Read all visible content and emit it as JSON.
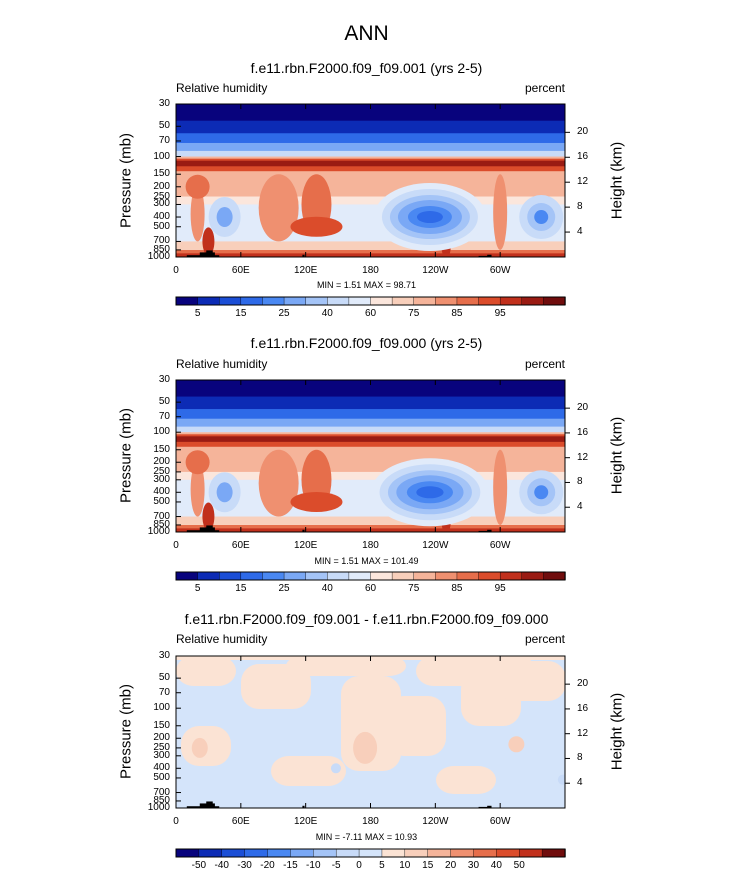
{
  "figure": {
    "title": "ANN"
  },
  "chart_data": [
    {
      "type": "heatmap",
      "title": "f.e11.rbn.F2000.f09_f09.001 (yrs 2-5)",
      "variable": "Relative humidity",
      "units": "percent",
      "ylabel": "Pressure (mb)",
      "ylabel_right": "Height (km)",
      "x_ticks": [
        "0",
        "60E",
        "120E",
        "180",
        "120W",
        "60W"
      ],
      "y_ticks": [
        "30",
        "50",
        "70",
        "100",
        "150",
        "200",
        "250",
        "300",
        "400",
        "500",
        "700",
        "850",
        "1000"
      ],
      "y_ticks_right": [
        "20",
        "16",
        "12",
        "8",
        "4"
      ],
      "stats": {
        "min": 1.51,
        "max": 98.71,
        "label": "MIN =   1.51  MAX = 98.71"
      },
      "colorbar_labels": [
        "5",
        "15",
        "25",
        "40",
        "60",
        "75",
        "85",
        "95"
      ],
      "features": {
        "dry_cores": [
          "Eastern Pacific ~120W, 400 mb",
          "Western Indian Ocean ~45E, 400 mb",
          "Atlantic ~20W, 400 mb"
        ],
        "moist_layers": [
          "tropopause ~100 mb",
          "boundary layer 850-1000 mb"
        ]
      }
    },
    {
      "type": "heatmap",
      "title": "f.e11.rbn.F2000.f09_f09.000 (yrs 2-5)",
      "variable": "Relative humidity",
      "units": "percent",
      "ylabel": "Pressure (mb)",
      "ylabel_right": "Height (km)",
      "x_ticks": [
        "0",
        "60E",
        "120E",
        "180",
        "120W",
        "60W"
      ],
      "y_ticks": [
        "30",
        "50",
        "70",
        "100",
        "150",
        "200",
        "250",
        "300",
        "400",
        "500",
        "700",
        "850",
        "1000"
      ],
      "y_ticks_right": [
        "20",
        "16",
        "12",
        "8",
        "4"
      ],
      "stats": {
        "min": 1.51,
        "max": 101.49,
        "label": "MIN =   1.51  MAX = 101.49"
      },
      "colorbar_labels": [
        "5",
        "15",
        "25",
        "40",
        "60",
        "75",
        "85",
        "95"
      ]
    },
    {
      "type": "heatmap",
      "title": "f.e11.rbn.F2000.f09_f09.001 - f.e11.rbn.F2000.f09_f09.000",
      "variable": "Relative humidity",
      "units": "percent",
      "ylabel": "Pressure (mb)",
      "ylabel_right": "Height (km)",
      "x_ticks": [
        "0",
        "60E",
        "120E",
        "180",
        "120W",
        "60W"
      ],
      "y_ticks": [
        "30",
        "50",
        "70",
        "100",
        "150",
        "200",
        "250",
        "300",
        "400",
        "500",
        "700",
        "850",
        "1000"
      ],
      "y_ticks_right": [
        "20",
        "16",
        "12",
        "8",
        "4"
      ],
      "stats": {
        "min": -7.11,
        "max": 10.93,
        "label": "MIN = -7.11  MAX = 10.93"
      },
      "colorbar_labels": [
        "-50",
        "-40",
        "-30",
        "-20",
        "-15",
        "-10",
        "-5",
        "0",
        "5",
        "10",
        "15",
        "20",
        "30",
        "40",
        "50"
      ]
    }
  ],
  "colors": {
    "rh_scale": [
      "#08037d",
      "#0c2bb5",
      "#1b4ed6",
      "#2e6ae8",
      "#4a88f2",
      "#7aa8f5",
      "#a4c4f7",
      "#c8dbf8",
      "#e1ebfa",
      "#fbe6dc",
      "#f8cfbb",
      "#f5b49a",
      "#ef9070",
      "#e66e4b",
      "#db4c2b",
      "#c1301c",
      "#9a1b13",
      "#700d0d"
    ],
    "diff_scale": [
      "#08037d",
      "#0c2bb5",
      "#1b4ed6",
      "#2e6ae8",
      "#4a88f2",
      "#7aa8f5",
      "#a4c4f7",
      "#c8dbf8",
      "#d4e4fa",
      "#fbe3d4",
      "#f8cfbb",
      "#f5b49a",
      "#ef9070",
      "#e66e4b",
      "#db4c2b",
      "#c1301c",
      "#700d0d"
    ],
    "diff_bg": "#d4e4fa",
    "diff_pos": "#fbe3d4",
    "diff_pos2": "#f8cfbb",
    "diff_neg2": "#c8dbf8",
    "topography": "#000000"
  }
}
